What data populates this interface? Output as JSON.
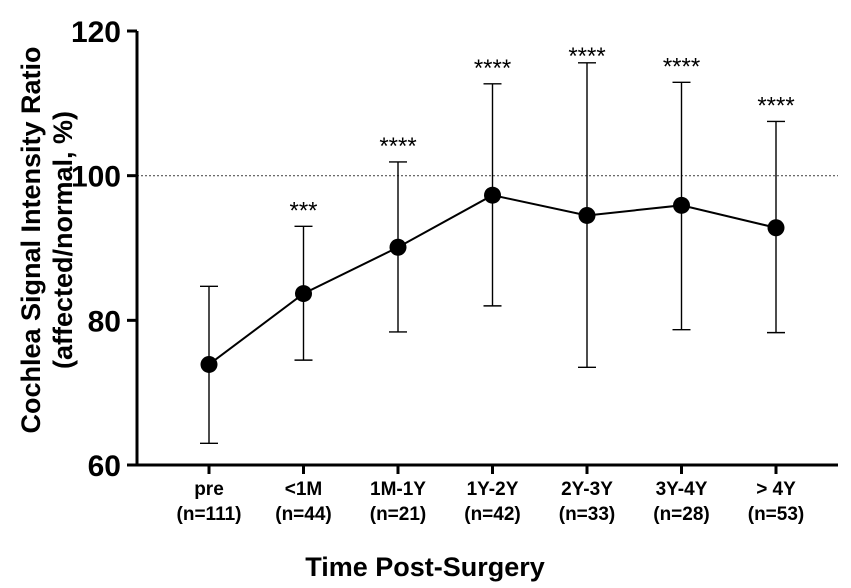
{
  "chart_data": {
    "type": "line",
    "title": "",
    "xlabel": "Time Post-Surgery",
    "ylabel_line1": "Cochlea Signal Intensity Ratio",
    "ylabel_line2": "(affected/normal, %)",
    "ylim": [
      60,
      120
    ],
    "yticks": [
      60,
      80,
      100,
      120
    ],
    "reference_line": 100,
    "grid": false,
    "categories": [
      {
        "label": "pre",
        "n": "(n=111)"
      },
      {
        "label": "<1M",
        "n": "(n=44)"
      },
      {
        "label": "1M-1Y",
        "n": "(n=21)"
      },
      {
        "label": "1Y-2Y",
        "n": "(n=42)"
      },
      {
        "label": "2Y-3Y",
        "n": "(n=33)"
      },
      {
        "label": "3Y-4Y",
        "n": "(n=28)"
      },
      {
        "label": "> 4Y",
        "n": "(n=53)"
      }
    ],
    "values": [
      73.9,
      83.7,
      90.1,
      97.3,
      94.5,
      95.9,
      92.8
    ],
    "error_upper": [
      84.7,
      93.0,
      101.9,
      112.7,
      115.6,
      112.9,
      107.5
    ],
    "error_lower": [
      63.0,
      74.5,
      78.4,
      82.0,
      73.5,
      78.7,
      78.3
    ],
    "significance": [
      "",
      "***",
      "****",
      "****",
      "****",
      "****",
      "****"
    ],
    "colors": {
      "line": "#000000",
      "marker": "#000000",
      "reference": "#555555"
    }
  }
}
